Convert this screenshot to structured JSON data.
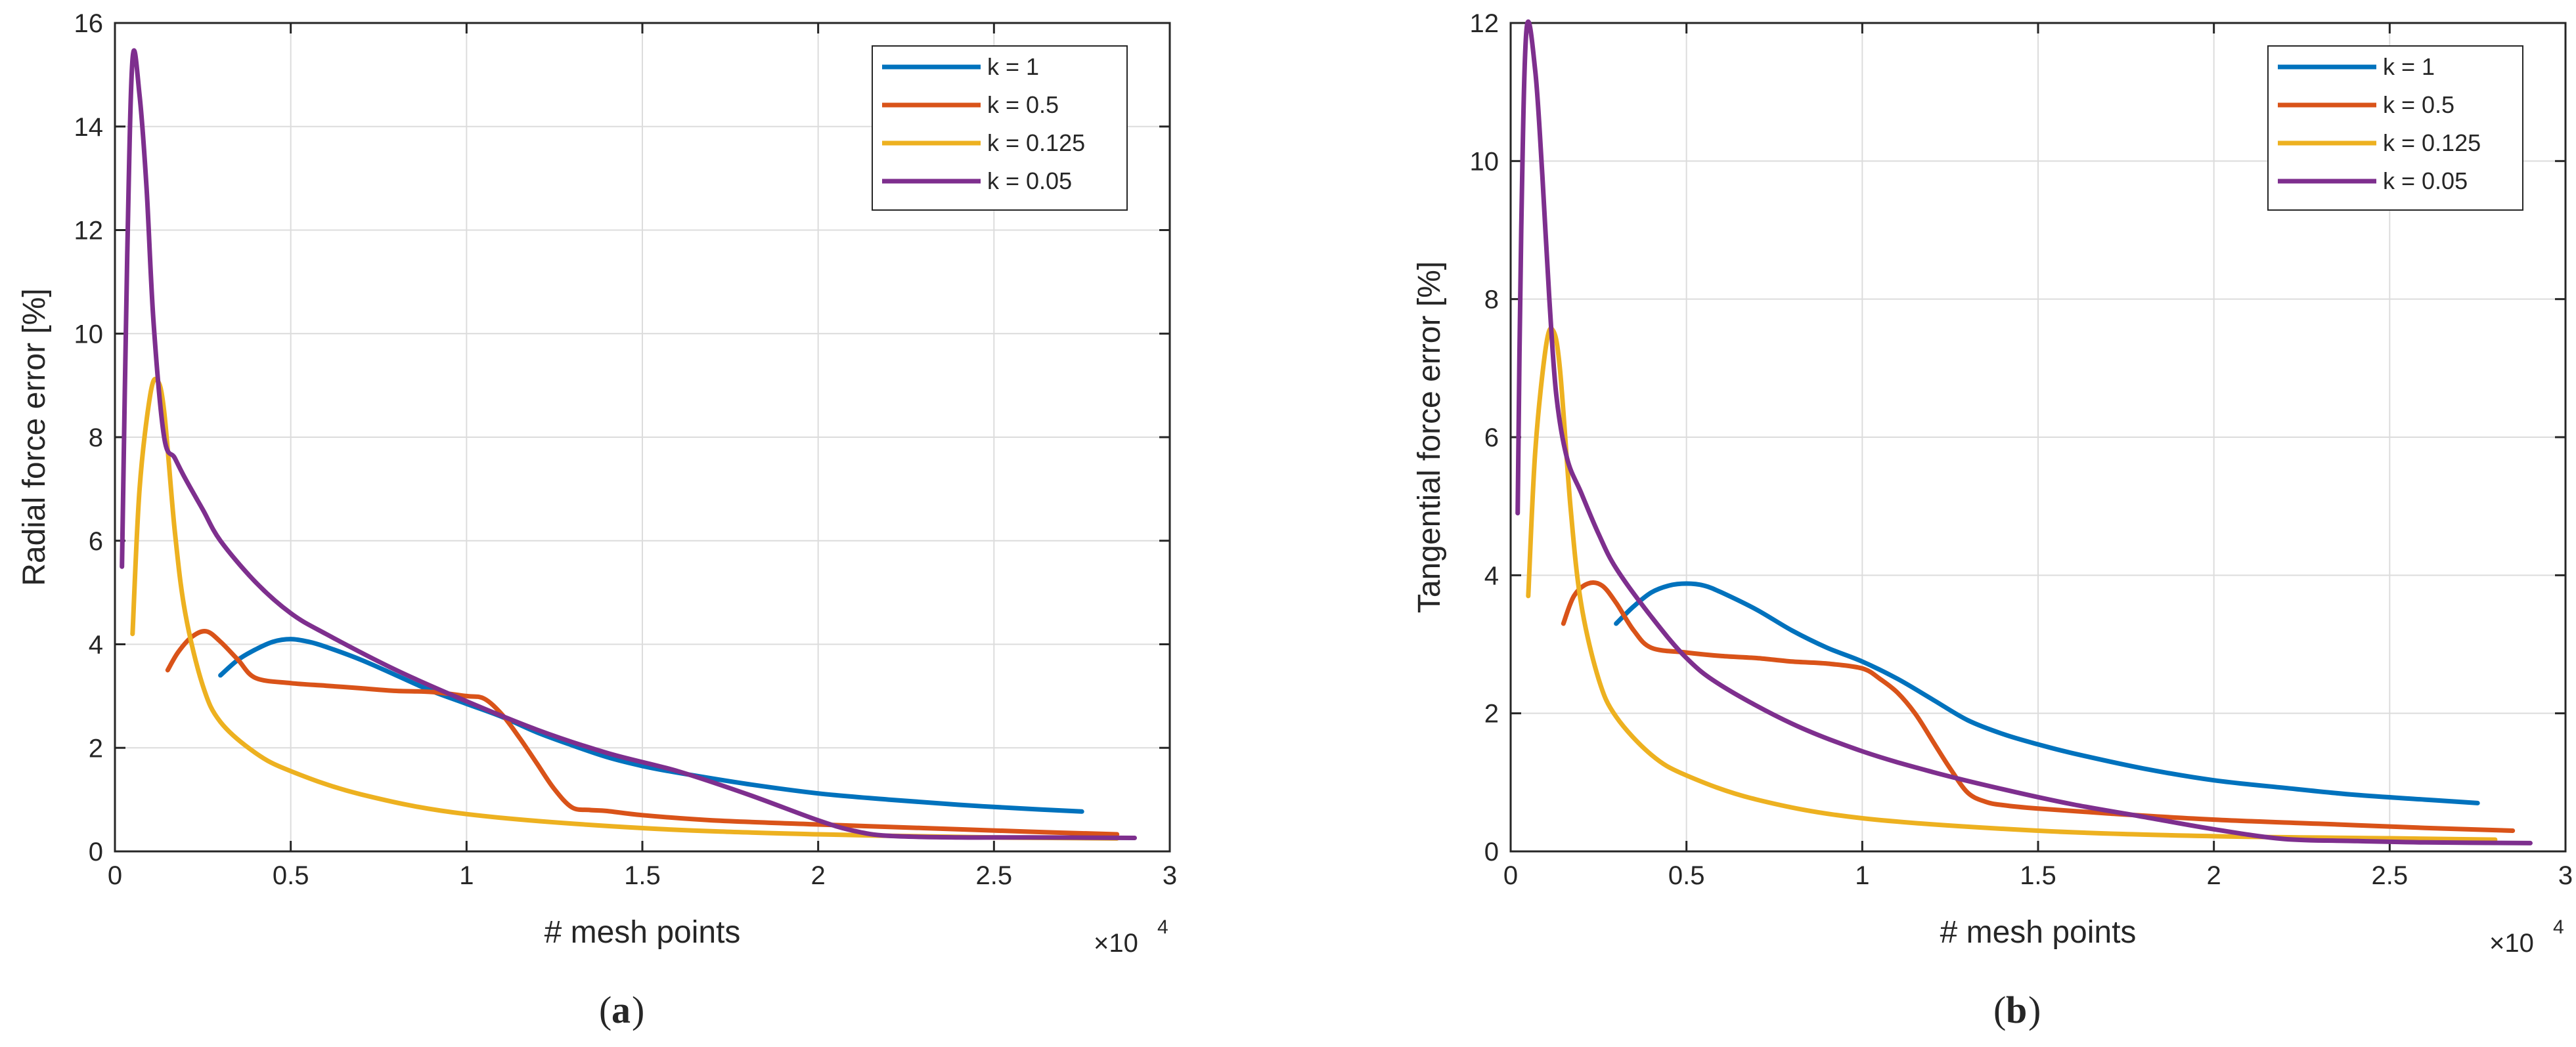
{
  "colors": {
    "series": [
      "#0072BD",
      "#D95319",
      "#EDB120",
      "#7E2F8E"
    ],
    "grid": "#dcdcdc",
    "axis": "#262626"
  },
  "chart_data": [
    {
      "type": "line",
      "panel_label": {
        "open": "(",
        "letter": "a",
        "close": ")"
      },
      "xlabel": "# mesh points",
      "ylabel": "Radial force error [%]",
      "x_exponent": {
        "base": "×10",
        "power": "4"
      },
      "xlim": [
        0,
        3
      ],
      "ylim": [
        0,
        16
      ],
      "xticks": [
        0,
        0.5,
        1,
        1.5,
        2,
        2.5,
        3
      ],
      "xtick_labels": [
        "0",
        "0.5",
        "1",
        "1.5",
        "2",
        "2.5",
        "3"
      ],
      "yticks": [
        0,
        2,
        4,
        6,
        8,
        10,
        12,
        14,
        16
      ],
      "ytick_labels": [
        "0",
        "2",
        "4",
        "6",
        "8",
        "10",
        "12",
        "14",
        "16"
      ],
      "grid": true,
      "legend_position": "top-right",
      "series": [
        {
          "name": "k = 1",
          "x": [
            0.3,
            0.35,
            0.4,
            0.45,
            0.5,
            0.55,
            0.6,
            0.7,
            0.8,
            0.9,
            1.0,
            1.1,
            1.2,
            1.3,
            1.4,
            1.5,
            1.6,
            1.8,
            2.0,
            2.2,
            2.4,
            2.6,
            2.75
          ],
          "y": [
            3.4,
            3.7,
            3.9,
            4.05,
            4.1,
            4.05,
            3.95,
            3.7,
            3.4,
            3.1,
            2.85,
            2.6,
            2.3,
            2.05,
            1.82,
            1.65,
            1.52,
            1.3,
            1.12,
            1.0,
            0.9,
            0.82,
            0.77
          ]
        },
        {
          "name": "k = 0.5",
          "x": [
            0.15,
            0.18,
            0.22,
            0.26,
            0.3,
            0.35,
            0.4,
            0.5,
            0.6,
            0.7,
            0.8,
            0.9,
            1.0,
            1.05,
            1.1,
            1.15,
            1.2,
            1.25,
            1.3,
            1.35,
            1.4,
            1.5,
            1.7,
            2.0,
            2.3,
            2.6,
            2.85
          ],
          "y": [
            3.5,
            3.85,
            4.15,
            4.25,
            4.05,
            3.7,
            3.35,
            3.25,
            3.2,
            3.15,
            3.1,
            3.08,
            3.0,
            2.95,
            2.65,
            2.2,
            1.7,
            1.2,
            0.85,
            0.8,
            0.78,
            0.7,
            0.6,
            0.52,
            0.45,
            0.38,
            0.33
          ]
        },
        {
          "name": "k = 0.125",
          "x": [
            0.05,
            0.07,
            0.1,
            0.12,
            0.14,
            0.17,
            0.2,
            0.25,
            0.3,
            0.4,
            0.5,
            0.7,
            1.0,
            1.5,
            2.0,
            2.5,
            2.85
          ],
          "y": [
            4.2,
            7.0,
            8.8,
            9.1,
            8.5,
            6.2,
            4.6,
            3.2,
            2.5,
            1.9,
            1.55,
            1.1,
            0.72,
            0.45,
            0.33,
            0.27,
            0.25
          ]
        },
        {
          "name": "k = 0.05",
          "x": [
            0.02,
            0.035,
            0.05,
            0.07,
            0.09,
            0.11,
            0.14,
            0.17,
            0.2,
            0.25,
            0.3,
            0.4,
            0.5,
            0.6,
            0.8,
            1.0,
            1.2,
            1.4,
            1.6,
            1.8,
            2.0,
            2.1,
            2.2,
            2.4,
            2.6,
            2.9
          ],
          "y": [
            5.5,
            11.5,
            15.3,
            14.6,
            12.8,
            10.2,
            8.0,
            7.6,
            7.2,
            6.6,
            6.0,
            5.2,
            4.6,
            4.2,
            3.5,
            2.9,
            2.35,
            1.9,
            1.55,
            1.1,
            0.6,
            0.4,
            0.3,
            0.27,
            0.27,
            0.26
          ]
        }
      ]
    },
    {
      "type": "line",
      "panel_label": {
        "open": "(",
        "letter": "b",
        "close": ")"
      },
      "xlabel": "# mesh points",
      "ylabel": "Tangential force error [%]",
      "x_exponent": {
        "base": "×10",
        "power": "4"
      },
      "xlim": [
        0,
        3
      ],
      "ylim": [
        0,
        12
      ],
      "xticks": [
        0,
        0.5,
        1,
        1.5,
        2,
        2.5,
        3
      ],
      "xtick_labels": [
        "0",
        "0.5",
        "1",
        "1.5",
        "2",
        "2.5",
        "3"
      ],
      "yticks": [
        0,
        2,
        4,
        6,
        8,
        10,
        12
      ],
      "ytick_labels": [
        "0",
        "2",
        "4",
        "6",
        "8",
        "10",
        "12"
      ],
      "grid": true,
      "legend_position": "top-right",
      "series": [
        {
          "name": "k = 1",
          "x": [
            0.3,
            0.35,
            0.4,
            0.45,
            0.5,
            0.55,
            0.6,
            0.7,
            0.8,
            0.9,
            1.0,
            1.1,
            1.2,
            1.3,
            1.4,
            1.5,
            1.6,
            1.8,
            2.0,
            2.2,
            2.4,
            2.6,
            2.75
          ],
          "y": [
            3.3,
            3.55,
            3.75,
            3.85,
            3.88,
            3.85,
            3.75,
            3.5,
            3.2,
            2.95,
            2.75,
            2.5,
            2.2,
            1.9,
            1.7,
            1.55,
            1.42,
            1.2,
            1.03,
            0.92,
            0.82,
            0.75,
            0.7
          ]
        },
        {
          "name": "k = 0.5",
          "x": [
            0.15,
            0.18,
            0.22,
            0.26,
            0.3,
            0.35,
            0.4,
            0.5,
            0.6,
            0.7,
            0.8,
            0.9,
            1.0,
            1.05,
            1.1,
            1.15,
            1.2,
            1.25,
            1.3,
            1.35,
            1.4,
            1.5,
            1.7,
            2.0,
            2.3,
            2.6,
            2.85
          ],
          "y": [
            3.3,
            3.7,
            3.88,
            3.85,
            3.6,
            3.2,
            2.95,
            2.88,
            2.83,
            2.8,
            2.75,
            2.72,
            2.65,
            2.5,
            2.3,
            2.0,
            1.6,
            1.2,
            0.85,
            0.72,
            0.67,
            0.62,
            0.55,
            0.46,
            0.4,
            0.34,
            0.3
          ]
        },
        {
          "name": "k = 0.125",
          "x": [
            0.05,
            0.07,
            0.1,
            0.12,
            0.14,
            0.17,
            0.2,
            0.25,
            0.3,
            0.4,
            0.5,
            0.7,
            1.0,
            1.5,
            2.0,
            2.5,
            2.8
          ],
          "y": [
            3.7,
            5.8,
            7.3,
            7.55,
            7.0,
            5.0,
            3.6,
            2.5,
            1.95,
            1.4,
            1.1,
            0.75,
            0.48,
            0.3,
            0.22,
            0.19,
            0.17
          ]
        },
        {
          "name": "k = 0.05",
          "x": [
            0.02,
            0.03,
            0.045,
            0.07,
            0.09,
            0.11,
            0.13,
            0.16,
            0.2,
            0.25,
            0.3,
            0.4,
            0.5,
            0.6,
            0.8,
            1.0,
            1.2,
            1.4,
            1.6,
            1.8,
            2.0,
            2.2,
            2.4,
            2.6,
            2.9
          ],
          "y": [
            4.9,
            9.0,
            11.9,
            11.3,
            9.8,
            8.0,
            6.6,
            5.7,
            5.2,
            4.6,
            4.1,
            3.4,
            2.8,
            2.4,
            1.85,
            1.45,
            1.15,
            0.9,
            0.68,
            0.5,
            0.32,
            0.18,
            0.15,
            0.13,
            0.12
          ]
        }
      ]
    }
  ]
}
